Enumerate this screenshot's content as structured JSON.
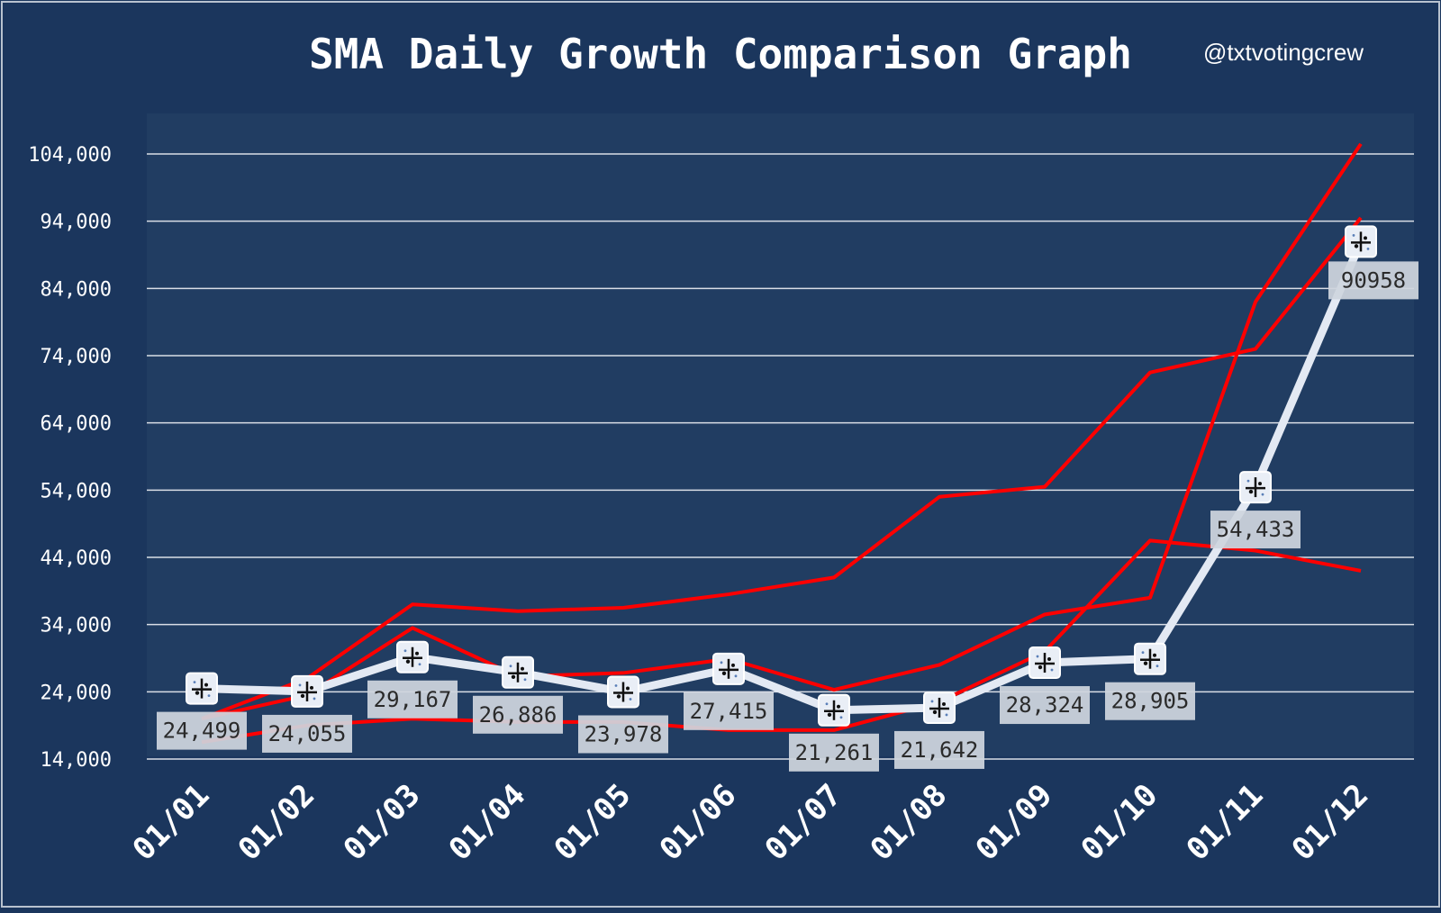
{
  "title": "SMA Daily Growth Comparison Graph",
  "handle": "@txtvotingcrew",
  "colors": {
    "background": "#1b365d",
    "plot_area": "#213d62",
    "grid": "#d9dee6",
    "highlight_series": "#e3e9f3",
    "comparison_series": "#ff0000",
    "label_box": "#cfd5de"
  },
  "icons": {
    "marker": "logo-marker-icon"
  },
  "chart_data": {
    "type": "line",
    "title": "SMA Daily Growth Comparison Graph",
    "xlabel": "",
    "ylabel": "",
    "ylim": [
      14000,
      104000
    ],
    "yticks": [
      14000,
      24000,
      34000,
      44000,
      54000,
      64000,
      74000,
      84000,
      94000,
      104000
    ],
    "ytick_labels": [
      "14,000",
      "24,000",
      "34,000",
      "44,000",
      "54,000",
      "64,000",
      "74,000",
      "84,000",
      "94,000",
      "104,000"
    ],
    "grid": true,
    "legend": "none",
    "categories": [
      "01/01",
      "01/02",
      "01/03",
      "01/04",
      "01/05",
      "01/06",
      "01/07",
      "01/08",
      "01/09",
      "01/10",
      "01/11",
      "01/12"
    ],
    "highlight": {
      "values": [
        24499,
        24055,
        29167,
        26886,
        23978,
        27415,
        21261,
        21642,
        28324,
        28905,
        54433,
        90958
      ],
      "labels": [
        "24,499",
        "24,055",
        "29,167",
        "26,886",
        "23,978",
        "27,415",
        "21,261",
        "21,642",
        "28,324",
        "28,905",
        "54,433",
        "90958"
      ]
    },
    "series": [
      {
        "values": [
          20000,
          26000,
          37000,
          36000,
          36500,
          38500,
          41000,
          53000,
          54500,
          71500,
          75000,
          94500
        ]
      },
      {
        "values": [
          20000,
          23500,
          33500,
          26300,
          26800,
          28900,
          24300,
          28000,
          35500,
          38000,
          82000,
          105500
        ]
      },
      {
        "values": [
          16500,
          19000,
          20000,
          19500,
          19500,
          18300,
          18300,
          22500,
          30000,
          46500,
          45000,
          42000
        ]
      }
    ]
  }
}
